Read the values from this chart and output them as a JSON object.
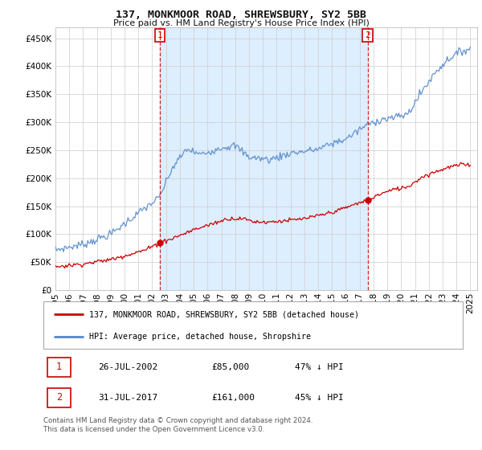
{
  "title": "137, MONKMOOR ROAD, SHREWSBURY, SY2 5BB",
  "subtitle": "Price paid vs. HM Land Registry's House Price Index (HPI)",
  "legend_line1": "137, MONKMOOR ROAD, SHREWSBURY, SY2 5BB (detached house)",
  "legend_line2": "HPI: Average price, detached house, Shropshire",
  "sale1_label": "1",
  "sale1_date": "26-JUL-2002",
  "sale1_price": "£85,000",
  "sale1_note": "47% ↓ HPI",
  "sale1_year": 2002.57,
  "sale1_value": 85000,
  "sale2_label": "2",
  "sale2_date": "31-JUL-2017",
  "sale2_price": "£161,000",
  "sale2_note": "45% ↓ HPI",
  "sale2_year": 2017.57,
  "sale2_value": 161000,
  "footer": "Contains HM Land Registry data © Crown copyright and database right 2024.\nThis data is licensed under the Open Government Licence v3.0.",
  "hpi_color": "#5588cc",
  "price_color": "#cc0000",
  "vline_color": "#cc0000",
  "shade_color": "#ddeeff",
  "ylim": [
    0,
    470000
  ],
  "yticks": [
    0,
    50000,
    100000,
    150000,
    200000,
    250000,
    300000,
    350000,
    400000,
    450000
  ],
  "background_color": "#ffffff",
  "grid_color": "#cccccc"
}
